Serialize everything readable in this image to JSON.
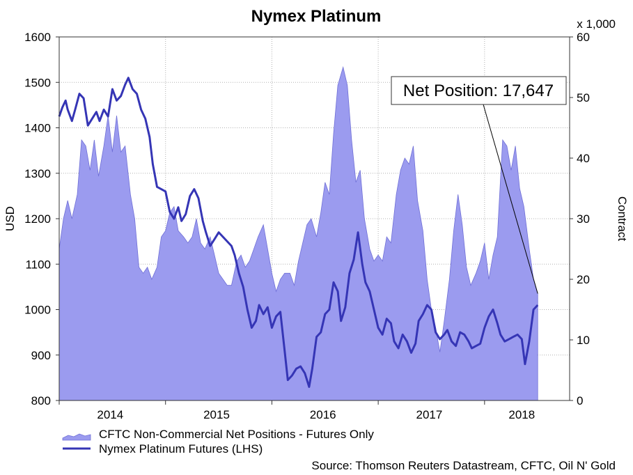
{
  "chart_data": {
    "type": "area+line",
    "title": "Nymex Platinum",
    "ylabel_left": "USD",
    "ylabel_right": "Contract",
    "right_unit": "x 1,000",
    "ylim_left": [
      800,
      1600
    ],
    "ylim_right": [
      0,
      60
    ],
    "left_ticks": [
      "800",
      "900",
      "1000",
      "1100",
      "1200",
      "1300",
      "1400",
      "1500",
      "1600"
    ],
    "right_ticks": [
      "0",
      "10",
      "20",
      "30",
      "40",
      "50",
      "60"
    ],
    "x_ticks": [
      "2014",
      "2015",
      "2016",
      "2017",
      "2018"
    ],
    "grid": true,
    "annotation": "Net Position: 17,647",
    "source": "Source: Thomson Reuters Datastream, CFTC, Oil N' Gold",
    "series": [
      {
        "name": "CFTC Non-Commercial Net Positions - Futures Only",
        "axis": "right",
        "color": "#9b9bef",
        "points": [
          [
            2013.5,
            25
          ],
          [
            2013.54,
            30
          ],
          [
            2013.58,
            33
          ],
          [
            2013.62,
            30
          ],
          [
            2013.67,
            34
          ],
          [
            2013.71,
            43
          ],
          [
            2013.75,
            42
          ],
          [
            2013.79,
            38
          ],
          [
            2013.83,
            43
          ],
          [
            2013.87,
            37
          ],
          [
            2013.92,
            42
          ],
          [
            2013.96,
            47
          ],
          [
            2014.0,
            41
          ],
          [
            2014.04,
            47
          ],
          [
            2014.08,
            41
          ],
          [
            2014.12,
            42
          ],
          [
            2014.17,
            34
          ],
          [
            2014.21,
            30
          ],
          [
            2014.25,
            22
          ],
          [
            2014.29,
            21
          ],
          [
            2014.33,
            22
          ],
          [
            2014.37,
            20
          ],
          [
            2014.42,
            22
          ],
          [
            2014.46,
            27
          ],
          [
            2014.5,
            28
          ],
          [
            2014.54,
            31
          ],
          [
            2014.58,
            32
          ],
          [
            2014.62,
            28
          ],
          [
            2014.67,
            27
          ],
          [
            2014.71,
            26
          ],
          [
            2014.75,
            27
          ],
          [
            2014.79,
            30
          ],
          [
            2014.83,
            26
          ],
          [
            2014.87,
            25
          ],
          [
            2014.92,
            27
          ],
          [
            2014.96,
            24
          ],
          [
            2015.0,
            21
          ],
          [
            2015.04,
            20
          ],
          [
            2015.08,
            19
          ],
          [
            2015.12,
            19
          ],
          [
            2015.17,
            23
          ],
          [
            2015.21,
            24
          ],
          [
            2015.25,
            22
          ],
          [
            2015.29,
            23
          ],
          [
            2015.33,
            25
          ],
          [
            2015.37,
            27
          ],
          [
            2015.42,
            29
          ],
          [
            2015.46,
            25
          ],
          [
            2015.5,
            21
          ],
          [
            2015.54,
            18
          ],
          [
            2015.58,
            20
          ],
          [
            2015.62,
            21
          ],
          [
            2015.67,
            21
          ],
          [
            2015.71,
            19
          ],
          [
            2015.75,
            23
          ],
          [
            2015.79,
            26
          ],
          [
            2015.83,
            29
          ],
          [
            2015.87,
            30
          ],
          [
            2015.92,
            27
          ],
          [
            2015.96,
            31
          ],
          [
            2016.0,
            36
          ],
          [
            2016.04,
            34
          ],
          [
            2016.08,
            44
          ],
          [
            2016.12,
            52
          ],
          [
            2016.17,
            55
          ],
          [
            2016.21,
            52
          ],
          [
            2016.25,
            43
          ],
          [
            2016.29,
            36
          ],
          [
            2016.33,
            38
          ],
          [
            2016.37,
            30
          ],
          [
            2016.42,
            25
          ],
          [
            2016.46,
            23
          ],
          [
            2016.5,
            24
          ],
          [
            2016.54,
            23
          ],
          [
            2016.58,
            27
          ],
          [
            2016.62,
            26
          ],
          [
            2016.67,
            34
          ],
          [
            2016.71,
            38
          ],
          [
            2016.75,
            40
          ],
          [
            2016.79,
            39
          ],
          [
            2016.83,
            42
          ],
          [
            2016.87,
            33
          ],
          [
            2016.92,
            28
          ],
          [
            2016.96,
            20
          ],
          [
            2017.0,
            15
          ],
          [
            2017.04,
            12
          ],
          [
            2017.08,
            8
          ],
          [
            2017.12,
            13
          ],
          [
            2017.17,
            20
          ],
          [
            2017.21,
            28
          ],
          [
            2017.25,
            34
          ],
          [
            2017.29,
            29
          ],
          [
            2017.33,
            22
          ],
          [
            2017.37,
            19
          ],
          [
            2017.42,
            21
          ],
          [
            2017.46,
            23
          ],
          [
            2017.5,
            26
          ],
          [
            2017.54,
            20
          ],
          [
            2017.58,
            24
          ],
          [
            2017.62,
            27
          ],
          [
            2017.67,
            43
          ],
          [
            2017.71,
            42
          ],
          [
            2017.75,
            38
          ],
          [
            2017.79,
            42
          ],
          [
            2017.83,
            35
          ],
          [
            2017.87,
            32
          ],
          [
            2017.92,
            25
          ],
          [
            2017.96,
            20
          ],
          [
            2018.0,
            17.647
          ]
        ]
      },
      {
        "name": "Nymex Platinum Futures (LHS)",
        "axis": "left",
        "color": "#3535b5",
        "points": [
          [
            2013.5,
            1425
          ],
          [
            2013.53,
            1445
          ],
          [
            2013.56,
            1460
          ],
          [
            2013.58,
            1440
          ],
          [
            2013.62,
            1415
          ],
          [
            2013.65,
            1440
          ],
          [
            2013.69,
            1475
          ],
          [
            2013.73,
            1465
          ],
          [
            2013.77,
            1405
          ],
          [
            2013.81,
            1420
          ],
          [
            2013.85,
            1435
          ],
          [
            2013.88,
            1415
          ],
          [
            2013.92,
            1440
          ],
          [
            2013.96,
            1425
          ],
          [
            2014.0,
            1485
          ],
          [
            2014.04,
            1460
          ],
          [
            2014.08,
            1470
          ],
          [
            2014.12,
            1495
          ],
          [
            2014.15,
            1510
          ],
          [
            2014.19,
            1485
          ],
          [
            2014.23,
            1475
          ],
          [
            2014.27,
            1440
          ],
          [
            2014.31,
            1420
          ],
          [
            2014.35,
            1380
          ],
          [
            2014.38,
            1320
          ],
          [
            2014.42,
            1270
          ],
          [
            2014.46,
            1265
          ],
          [
            2014.5,
            1260
          ],
          [
            2014.54,
            1215
          ],
          [
            2014.58,
            1200
          ],
          [
            2014.62,
            1225
          ],
          [
            2014.65,
            1195
          ],
          [
            2014.69,
            1210
          ],
          [
            2014.73,
            1250
          ],
          [
            2014.77,
            1265
          ],
          [
            2014.81,
            1245
          ],
          [
            2014.85,
            1195
          ],
          [
            2014.88,
            1170
          ],
          [
            2014.92,
            1140
          ],
          [
            2014.96,
            1155
          ],
          [
            2015.0,
            1170
          ],
          [
            2015.04,
            1160
          ],
          [
            2015.08,
            1150
          ],
          [
            2015.12,
            1140
          ],
          [
            2015.15,
            1120
          ],
          [
            2015.19,
            1080
          ],
          [
            2015.23,
            1050
          ],
          [
            2015.27,
            1000
          ],
          [
            2015.31,
            960
          ],
          [
            2015.35,
            975
          ],
          [
            2015.38,
            1010
          ],
          [
            2015.42,
            990
          ],
          [
            2015.46,
            1005
          ],
          [
            2015.5,
            960
          ],
          [
            2015.54,
            985
          ],
          [
            2015.58,
            995
          ],
          [
            2015.62,
            910
          ],
          [
            2015.65,
            845
          ],
          [
            2015.69,
            855
          ],
          [
            2015.73,
            870
          ],
          [
            2015.77,
            875
          ],
          [
            2015.81,
            860
          ],
          [
            2015.85,
            830
          ],
          [
            2015.88,
            870
          ],
          [
            2015.92,
            940
          ],
          [
            2015.96,
            950
          ],
          [
            2016.0,
            990
          ],
          [
            2016.04,
            1000
          ],
          [
            2016.08,
            1060
          ],
          [
            2016.12,
            1040
          ],
          [
            2016.15,
            975
          ],
          [
            2016.19,
            1005
          ],
          [
            2016.23,
            1080
          ],
          [
            2016.27,
            1110
          ],
          [
            2016.31,
            1170
          ],
          [
            2016.35,
            1100
          ],
          [
            2016.38,
            1060
          ],
          [
            2016.42,
            1040
          ],
          [
            2016.46,
            1000
          ],
          [
            2016.5,
            960
          ],
          [
            2016.54,
            945
          ],
          [
            2016.58,
            980
          ],
          [
            2016.62,
            970
          ],
          [
            2016.65,
            930
          ],
          [
            2016.69,
            915
          ],
          [
            2016.73,
            945
          ],
          [
            2016.77,
            930
          ],
          [
            2016.81,
            905
          ],
          [
            2016.85,
            925
          ],
          [
            2016.88,
            975
          ],
          [
            2016.92,
            990
          ],
          [
            2016.96,
            1010
          ],
          [
            2017.0,
            1000
          ],
          [
            2017.04,
            950
          ],
          [
            2017.08,
            935
          ],
          [
            2017.12,
            945
          ],
          [
            2017.15,
            955
          ],
          [
            2017.19,
            930
          ],
          [
            2017.23,
            920
          ],
          [
            2017.27,
            950
          ],
          [
            2017.31,
            945
          ],
          [
            2017.35,
            930
          ],
          [
            2017.38,
            915
          ],
          [
            2017.42,
            920
          ],
          [
            2017.46,
            925
          ],
          [
            2017.5,
            960
          ],
          [
            2017.54,
            985
          ],
          [
            2017.58,
            1000
          ],
          [
            2017.62,
            970
          ],
          [
            2017.65,
            945
          ],
          [
            2017.69,
            930
          ],
          [
            2017.73,
            935
          ],
          [
            2017.77,
            940
          ],
          [
            2017.81,
            945
          ],
          [
            2017.85,
            935
          ],
          [
            2017.88,
            880
          ],
          [
            2017.92,
            930
          ],
          [
            2017.96,
            1000
          ],
          [
            2018.0,
            1010
          ]
        ]
      }
    ]
  }
}
